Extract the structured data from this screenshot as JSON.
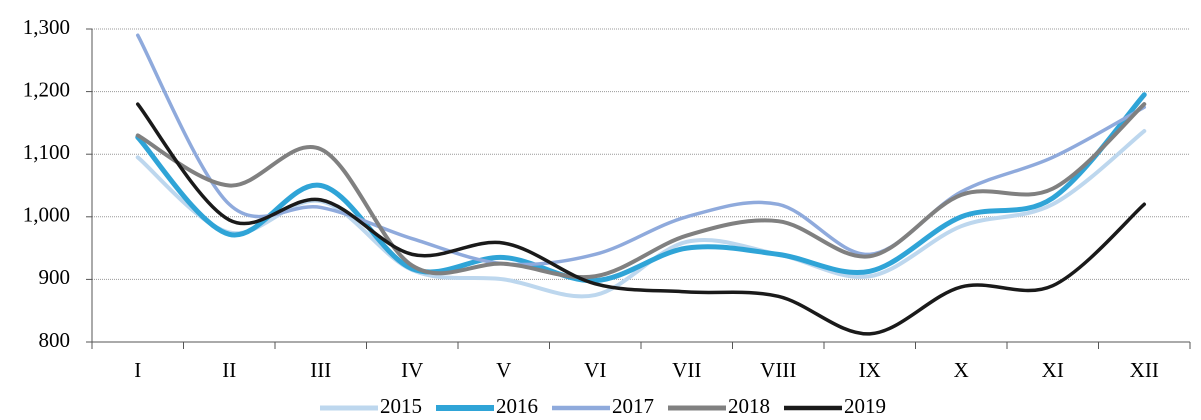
{
  "chart_data": {
    "type": "line",
    "categories": [
      "I",
      "II",
      "III",
      "IV",
      "V",
      "VI",
      "VII",
      "VIII",
      "IX",
      "X",
      "XI",
      "XII"
    ],
    "series": [
      {
        "name": "2015",
        "color": "#bdd7ee",
        "values": [
          1095,
          975,
          1025,
          915,
          900,
          875,
          960,
          940,
          905,
          985,
          1020,
          1137
        ]
      },
      {
        "name": "2016",
        "color": "#2fa4d7",
        "values": [
          1127,
          972,
          1050,
          917,
          935,
          898,
          950,
          940,
          913,
          1000,
          1030,
          1195
        ]
      },
      {
        "name": "2017",
        "color": "#8faadc",
        "values": [
          1290,
          1020,
          1015,
          965,
          925,
          940,
          1000,
          1020,
          940,
          1040,
          1095,
          1175
        ]
      },
      {
        "name": "2018",
        "color": "#808080",
        "values": [
          1130,
          1050,
          1108,
          922,
          925,
          905,
          970,
          993,
          937,
          1035,
          1045,
          1180
        ]
      },
      {
        "name": "2019",
        "color": "#1a1a1a",
        "values": [
          1180,
          995,
          1027,
          940,
          958,
          893,
          880,
          873,
          813,
          888,
          890,
          1020
        ]
      }
    ],
    "ylim": [
      800,
      1300
    ],
    "yticks": [
      800,
      900,
      {
        "value": 1000,
        "label": "1,000"
      },
      {
        "value": 1100,
        "label": "1,100"
      },
      {
        "value": 1200,
        "label": "1,200"
      },
      {
        "value": 1300,
        "label": "1,300"
      }
    ],
    "grid": true,
    "legend": "bottom"
  }
}
